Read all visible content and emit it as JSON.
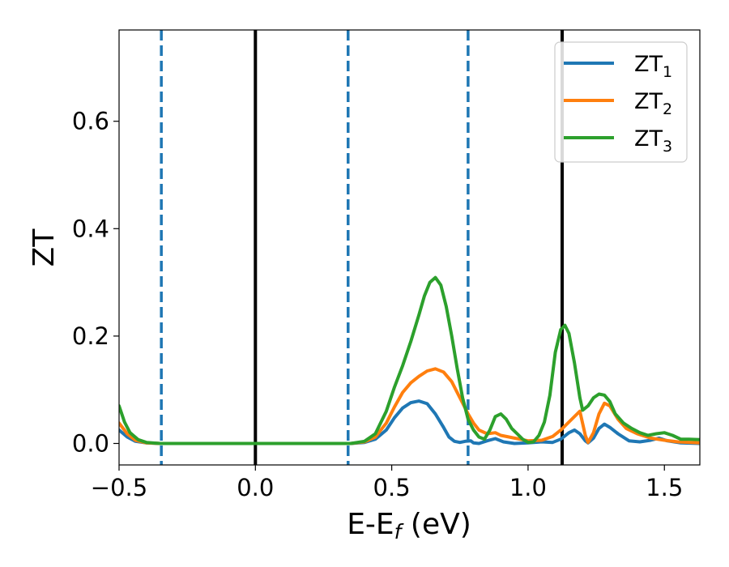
{
  "chart_data": {
    "type": "line",
    "xlabel": "E-E",
    "xlabel_sub": "f",
    "xlabel_unit": " (eV)",
    "ylabel": "ZT",
    "xlim": [
      -0.5,
      1.63
    ],
    "ylim": [
      -0.04,
      0.77
    ],
    "xticks": [
      -0.5,
      0.0,
      0.5,
      1.0,
      1.5
    ],
    "xtick_labels": [
      "−0.5",
      "0.0",
      "0.5",
      "1.0",
      "1.5"
    ],
    "yticks": [
      0.0,
      0.2,
      0.4,
      0.6
    ],
    "ytick_labels": [
      "0.0",
      "0.2",
      "0.4",
      "0.6"
    ],
    "grid": false,
    "legend_position": "top-right",
    "vlines": [
      {
        "x": -0.345,
        "style": "dashed",
        "color": "#1f77b4"
      },
      {
        "x": 0.0,
        "style": "solid",
        "color": "#000000"
      },
      {
        "x": 0.34,
        "style": "dashed",
        "color": "#1f77b4"
      },
      {
        "x": 0.78,
        "style": "dashed",
        "color": "#1f77b4"
      },
      {
        "x": 1.125,
        "style": "solid",
        "color": "#000000"
      }
    ],
    "series": [
      {
        "name": "ZT",
        "sub": "1",
        "color": "#1f77b4",
        "points": [
          [
            -0.5,
            0.025
          ],
          [
            -0.47,
            0.012
          ],
          [
            -0.44,
            0.004
          ],
          [
            -0.4,
            0.001
          ],
          [
            -0.35,
            0.0
          ],
          [
            0.0,
            0.0
          ],
          [
            0.35,
            0.0
          ],
          [
            0.4,
            0.002
          ],
          [
            0.44,
            0.008
          ],
          [
            0.48,
            0.025
          ],
          [
            0.51,
            0.048
          ],
          [
            0.54,
            0.066
          ],
          [
            0.57,
            0.076
          ],
          [
            0.6,
            0.079
          ],
          [
            0.63,
            0.074
          ],
          [
            0.66,
            0.055
          ],
          [
            0.69,
            0.03
          ],
          [
            0.71,
            0.012
          ],
          [
            0.73,
            0.004
          ],
          [
            0.75,
            0.002
          ],
          [
            0.77,
            0.004
          ],
          [
            0.79,
            0.005
          ],
          [
            0.8,
            0.001
          ],
          [
            0.82,
            0.0
          ],
          [
            0.85,
            0.005
          ],
          [
            0.88,
            0.009
          ],
          [
            0.91,
            0.003
          ],
          [
            0.95,
            0.0
          ],
          [
            1.0,
            0.001
          ],
          [
            1.05,
            0.003
          ],
          [
            1.09,
            0.002
          ],
          [
            1.12,
            0.008
          ],
          [
            1.15,
            0.02
          ],
          [
            1.17,
            0.025
          ],
          [
            1.19,
            0.018
          ],
          [
            1.21,
            0.005
          ],
          [
            1.22,
            0.001
          ],
          [
            1.24,
            0.01
          ],
          [
            1.26,
            0.028
          ],
          [
            1.28,
            0.036
          ],
          [
            1.3,
            0.03
          ],
          [
            1.33,
            0.018
          ],
          [
            1.37,
            0.005
          ],
          [
            1.41,
            0.003
          ],
          [
            1.45,
            0.006
          ],
          [
            1.48,
            0.01
          ],
          [
            1.51,
            0.005
          ],
          [
            1.56,
            0.001
          ],
          [
            1.63,
            0.0
          ]
        ]
      },
      {
        "name": "ZT",
        "sub": "2",
        "color": "#ff7f0e",
        "points": [
          [
            -0.5,
            0.038
          ],
          [
            -0.47,
            0.018
          ],
          [
            -0.44,
            0.006
          ],
          [
            -0.4,
            0.001
          ],
          [
            -0.35,
            0.0
          ],
          [
            0.0,
            0.0
          ],
          [
            0.35,
            0.0
          ],
          [
            0.4,
            0.003
          ],
          [
            0.44,
            0.012
          ],
          [
            0.48,
            0.038
          ],
          [
            0.51,
            0.068
          ],
          [
            0.54,
            0.095
          ],
          [
            0.57,
            0.113
          ],
          [
            0.6,
            0.125
          ],
          [
            0.63,
            0.135
          ],
          [
            0.66,
            0.139
          ],
          [
            0.69,
            0.133
          ],
          [
            0.72,
            0.115
          ],
          [
            0.75,
            0.085
          ],
          [
            0.78,
            0.055
          ],
          [
            0.8,
            0.038
          ],
          [
            0.82,
            0.025
          ],
          [
            0.85,
            0.018
          ],
          [
            0.88,
            0.02
          ],
          [
            0.9,
            0.015
          ],
          [
            0.93,
            0.012
          ],
          [
            0.97,
            0.008
          ],
          [
            1.0,
            0.005
          ],
          [
            1.05,
            0.006
          ],
          [
            1.09,
            0.013
          ],
          [
            1.12,
            0.025
          ],
          [
            1.15,
            0.04
          ],
          [
            1.18,
            0.055
          ],
          [
            1.19,
            0.06
          ],
          [
            1.21,
            0.015
          ],
          [
            1.22,
            0.002
          ],
          [
            1.24,
            0.02
          ],
          [
            1.26,
            0.055
          ],
          [
            1.28,
            0.075
          ],
          [
            1.3,
            0.07
          ],
          [
            1.33,
            0.045
          ],
          [
            1.36,
            0.028
          ],
          [
            1.4,
            0.018
          ],
          [
            1.45,
            0.01
          ],
          [
            1.5,
            0.006
          ],
          [
            1.55,
            0.003
          ],
          [
            1.63,
            0.001
          ]
        ]
      },
      {
        "name": "ZT",
        "sub": "3",
        "color": "#2ca02c",
        "points": [
          [
            -0.5,
            0.07
          ],
          [
            -0.48,
            0.04
          ],
          [
            -0.46,
            0.02
          ],
          [
            -0.43,
            0.007
          ],
          [
            -0.4,
            0.002
          ],
          [
            -0.35,
            0.0
          ],
          [
            0.0,
            0.0
          ],
          [
            0.35,
            0.0
          ],
          [
            0.4,
            0.004
          ],
          [
            0.44,
            0.018
          ],
          [
            0.48,
            0.06
          ],
          [
            0.51,
            0.105
          ],
          [
            0.54,
            0.145
          ],
          [
            0.57,
            0.19
          ],
          [
            0.6,
            0.24
          ],
          [
            0.62,
            0.275
          ],
          [
            0.64,
            0.3
          ],
          [
            0.66,
            0.309
          ],
          [
            0.68,
            0.295
          ],
          [
            0.7,
            0.255
          ],
          [
            0.72,
            0.2
          ],
          [
            0.74,
            0.14
          ],
          [
            0.76,
            0.085
          ],
          [
            0.78,
            0.045
          ],
          [
            0.8,
            0.025
          ],
          [
            0.82,
            0.012
          ],
          [
            0.84,
            0.008
          ],
          [
            0.86,
            0.025
          ],
          [
            0.88,
            0.05
          ],
          [
            0.9,
            0.055
          ],
          [
            0.92,
            0.045
          ],
          [
            0.94,
            0.028
          ],
          [
            0.96,
            0.018
          ],
          [
            0.98,
            0.008
          ],
          [
            1.0,
            0.002
          ],
          [
            1.02,
            0.003
          ],
          [
            1.04,
            0.015
          ],
          [
            1.06,
            0.04
          ],
          [
            1.08,
            0.09
          ],
          [
            1.1,
            0.17
          ],
          [
            1.12,
            0.212
          ],
          [
            1.135,
            0.22
          ],
          [
            1.15,
            0.205
          ],
          [
            1.17,
            0.15
          ],
          [
            1.19,
            0.085
          ],
          [
            1.2,
            0.062
          ],
          [
            1.22,
            0.07
          ],
          [
            1.24,
            0.085
          ],
          [
            1.26,
            0.092
          ],
          [
            1.28,
            0.09
          ],
          [
            1.3,
            0.078
          ],
          [
            1.32,
            0.055
          ],
          [
            1.35,
            0.038
          ],
          [
            1.38,
            0.028
          ],
          [
            1.41,
            0.02
          ],
          [
            1.44,
            0.015
          ],
          [
            1.47,
            0.018
          ],
          [
            1.5,
            0.02
          ],
          [
            1.53,
            0.015
          ],
          [
            1.56,
            0.008
          ],
          [
            1.59,
            0.008
          ],
          [
            1.63,
            0.007
          ]
        ]
      }
    ]
  }
}
